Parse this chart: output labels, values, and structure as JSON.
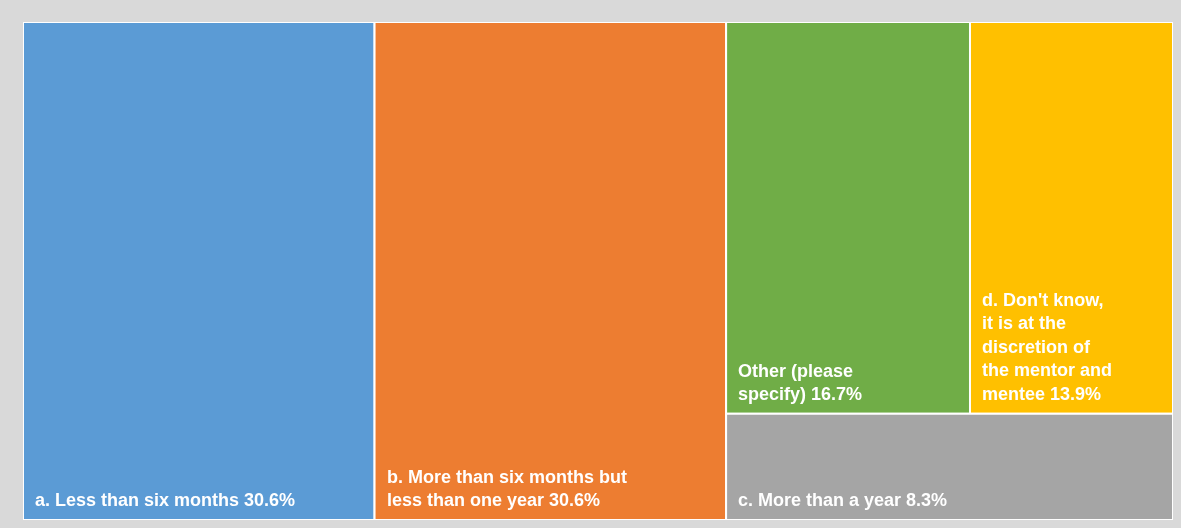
{
  "chart_data": {
    "type": "other",
    "categories": [
      "a. Less than six months",
      "b. More than six months but less than one year",
      "Other (please specify)",
      "d. Don't know, it is at the discretion of the mentor and mentee",
      "c. More than a year"
    ],
    "values": [
      30.6,
      30.6,
      16.7,
      13.9,
      8.3
    ],
    "value_labels": [
      "30.6%",
      "30.6%",
      "16.7%",
      "13.9%",
      "8.3%"
    ],
    "colors": [
      "#5b9bd5",
      "#ed7d31",
      "#70ad47",
      "#ffc000",
      "#a5a5a5"
    ]
  }
}
